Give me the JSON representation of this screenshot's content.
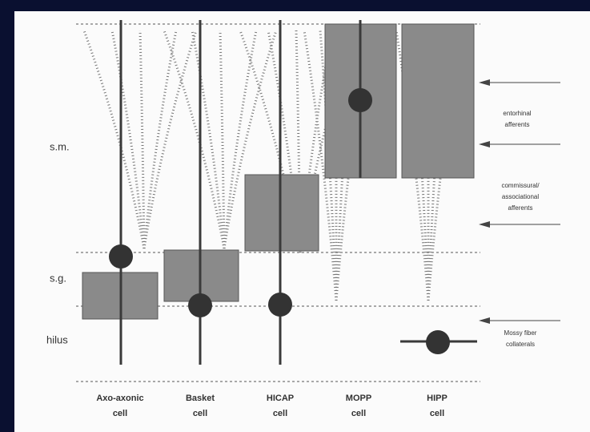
{
  "layers": [
    "s.m.",
    "s.g.",
    "hilus"
  ],
  "cells": [
    [
      "Axo-axonic",
      "cell"
    ],
    [
      "Basket",
      "cell"
    ],
    [
      "HICAP",
      "cell"
    ],
    [
      "MOPP",
      "cell"
    ],
    [
      "HIPP",
      "cell"
    ]
  ],
  "afferents": [
    [
      "entorhinal",
      "afferents"
    ],
    [
      "commissural/",
      "associational",
      "afferents"
    ],
    [
      "Mossy fiber",
      "collaterals"
    ]
  ]
}
